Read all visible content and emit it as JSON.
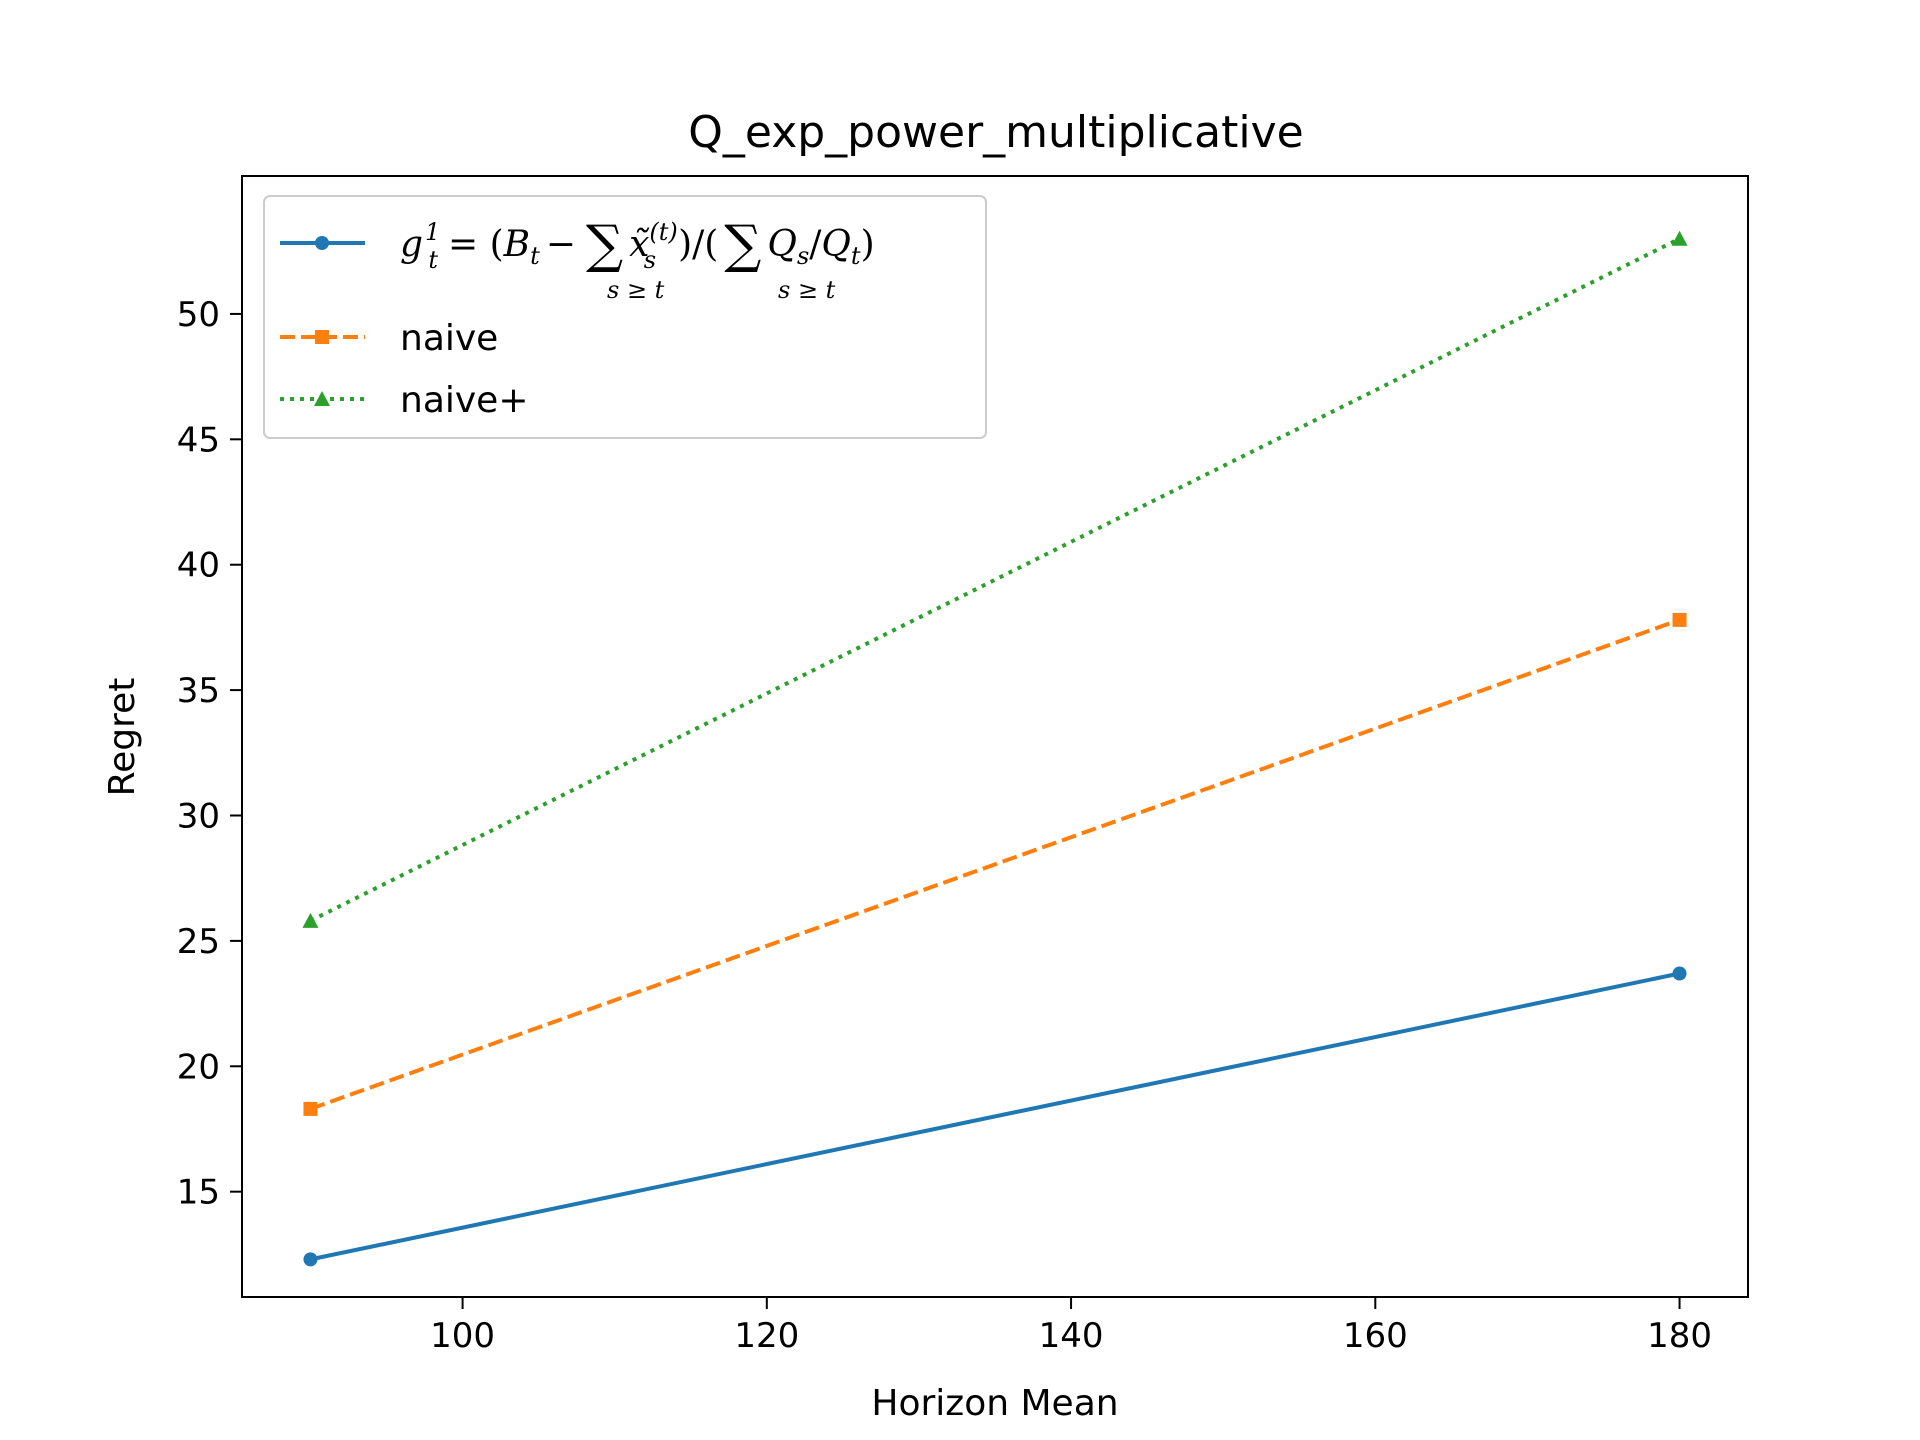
{
  "chart_data": {
    "type": "line",
    "title": "Q_exp_power_multiplicative",
    "xlabel": "Horizon Mean",
    "ylabel": "Regret",
    "xlim": [
      85.5,
      184.5
    ],
    "ylim": [
      10.8,
      55.5
    ],
    "xticks": [
      100,
      120,
      140,
      160,
      180
    ],
    "yticks": [
      15,
      20,
      25,
      30,
      35,
      40,
      45,
      50
    ],
    "grid": false,
    "legend": "top-left",
    "series": [
      {
        "name": "g_t^1 = (B_t − Σ_{s≥t} x̃_s^(t)) / (Σ_{s≥t} Q_s/Q_t)",
        "x": [
          90,
          180
        ],
        "y": [
          12.3,
          23.7
        ],
        "color": "#1f77b4",
        "linestyle": "solid",
        "marker": "circle"
      },
      {
        "name": "naive",
        "x": [
          90,
          180
        ],
        "y": [
          18.3,
          37.8
        ],
        "color": "#ff7f0e",
        "linestyle": "dashed",
        "marker": "square"
      },
      {
        "name": "naive+",
        "x": [
          90,
          180
        ],
        "y": [
          25.8,
          53.0
        ],
        "color": "#2ca02c",
        "linestyle": "dotted",
        "marker": "triangle"
      }
    ]
  }
}
